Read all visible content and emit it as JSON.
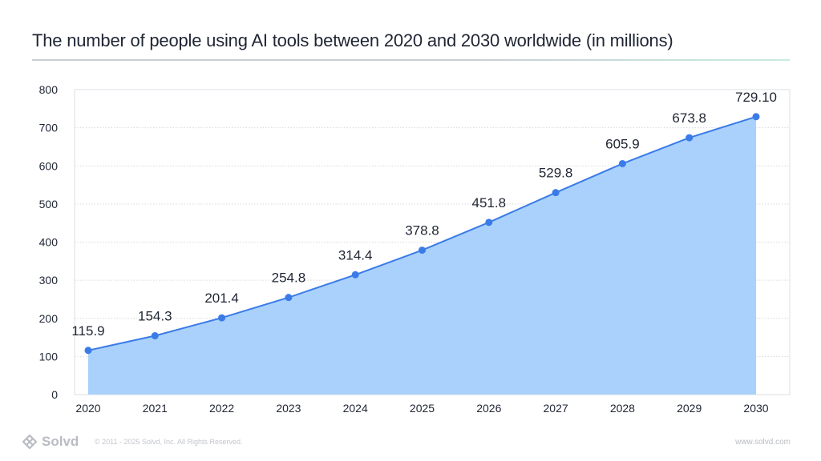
{
  "chart_data": {
    "type": "area",
    "title": "The number of people using AI tools between 2020 and 2030 worldwide (in millions)",
    "xlabel": "",
    "ylabel": "",
    "categories": [
      "2020",
      "2021",
      "2022",
      "2023",
      "2024",
      "2025",
      "2026",
      "2027",
      "2028",
      "2029",
      "2030"
    ],
    "values": [
      115.9,
      154.3,
      201.4,
      254.8,
      314.4,
      378.8,
      451.8,
      529.8,
      605.9,
      673.8,
      729.1
    ],
    "value_labels": [
      "115.9",
      "154.3",
      "201.4",
      "254.8",
      "314.4",
      "378.8",
      "451.8",
      "529.8",
      "605.9",
      "673.8",
      "729.10"
    ],
    "ylim": [
      0,
      800
    ],
    "yticks": [
      "0",
      "100",
      "200",
      "300",
      "400",
      "500",
      "600",
      "700",
      "800"
    ],
    "grid": true,
    "legend": "none",
    "colors": {
      "line": "#3b7be8",
      "fill": "#a9d1fb",
      "marker": "#3b7be8"
    }
  },
  "footer": {
    "brand": "Solvd",
    "copyright": "© 2011 - 2025 Solvd, Inc. All Rights Reserved.",
    "url": "www.solvd.com",
    "logo_icon": "solvd-logo-icon"
  }
}
